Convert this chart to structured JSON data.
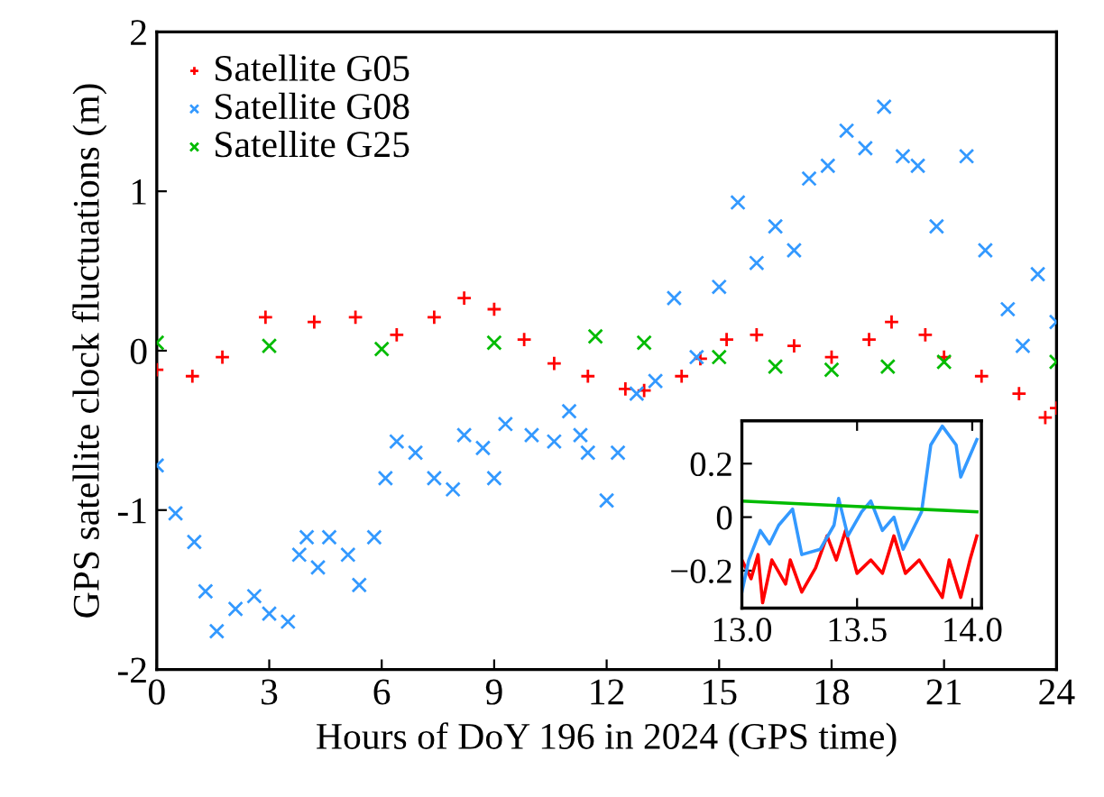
{
  "chart_data": [
    {
      "type": "scatter",
      "xlabel": "Hours of DoY 196 in 2024 (GPS time)",
      "ylabel": "GPS satellite clock fluctuations (m)",
      "xlim": [
        0,
        24
      ],
      "xticks": [
        0,
        3,
        6,
        9,
        12,
        15,
        18,
        21,
        24
      ],
      "ylim": [
        -2,
        2
      ],
      "yticks": [
        -2,
        -1,
        0,
        1,
        2
      ],
      "legend": "top left",
      "grid": false,
      "series": [
        {
          "name": "Satellite G05",
          "color": "#ff0000",
          "marker": "plus",
          "x": [
            0,
            0.95,
            1.75,
            2.9,
            4.2,
            5.3,
            6.4,
            7.4,
            8.2,
            9.0,
            9.8,
            10.6,
            11.5,
            12.5,
            13,
            14,
            14.5,
            15.2,
            16,
            17,
            18,
            19,
            19.6,
            20.5,
            21,
            22,
            23,
            23.7,
            24
          ],
          "values": [
            -0.12,
            -0.16,
            -0.04,
            0.21,
            0.18,
            0.21,
            0.1,
            0.21,
            0.33,
            0.26,
            0.07,
            -0.08,
            -0.16,
            -0.24,
            -0.25,
            -0.16,
            -0.05,
            0.07,
            0.1,
            0.03,
            -0.04,
            0.07,
            0.18,
            0.1,
            -0.04,
            -0.16,
            -0.27,
            -0.42,
            -0.36
          ]
        },
        {
          "name": "Satellite G08",
          "color": "#3399ff",
          "marker": "cross",
          "x": [
            0,
            0.5,
            1.0,
            1.3,
            1.6,
            2.1,
            2.6,
            3.0,
            3.5,
            3.8,
            4.0,
            4.3,
            4.6,
            5.1,
            5.4,
            5.8,
            6.1,
            6.4,
            6.9,
            7.4,
            7.9,
            8.2,
            8.7,
            9.0,
            9.3,
            10.0,
            10.6,
            11.0,
            11.3,
            11.5,
            12.0,
            12.3,
            12.8,
            13.3,
            13.8,
            14.4,
            15.0,
            15.5,
            16.0,
            16.5,
            17.0,
            17.4,
            17.9,
            18.4,
            18.9,
            19.4,
            19.9,
            20.3,
            20.8,
            21.6,
            22.1,
            22.7,
            23.1,
            23.5,
            24.0
          ],
          "values": [
            -0.72,
            -1.02,
            -1.2,
            -1.51,
            -1.76,
            -1.62,
            -1.54,
            -1.65,
            -1.7,
            -1.28,
            -1.17,
            -1.36,
            -1.17,
            -1.28,
            -1.47,
            -1.17,
            -0.8,
            -0.57,
            -0.64,
            -0.8,
            -0.87,
            -0.53,
            -0.61,
            -0.8,
            -0.46,
            -0.53,
            -0.57,
            -0.38,
            -0.53,
            -0.64,
            -0.94,
            -0.64,
            -0.27,
            -0.19,
            0.33,
            -0.04,
            0.4,
            0.93,
            0.55,
            0.78,
            0.63,
            1.08,
            1.16,
            1.38,
            1.27,
            1.53,
            1.22,
            1.16,
            0.78,
            1.22,
            0.63,
            0.26,
            0.03,
            0.48,
            0.18
          ]
        },
        {
          "name": "Satellite G25",
          "color": "#00bb00",
          "marker": "cross",
          "x": [
            0,
            3,
            6,
            9,
            11.7,
            13,
            15,
            16.5,
            18,
            19.5,
            21,
            24
          ],
          "values": [
            0.05,
            0.03,
            0.01,
            0.05,
            0.09,
            0.05,
            -0.04,
            -0.1,
            -0.12,
            -0.1,
            -0.07,
            -0.07
          ]
        }
      ]
    },
    {
      "type": "line",
      "xlim": [
        13.0,
        14.04
      ],
      "xticks": [
        {
          "value": 13,
          "label": "13.0"
        },
        {
          "value": 13.5,
          "label": "13.5"
        },
        {
          "value": 14,
          "label": "14.0"
        }
      ],
      "ylim": [
        -0.34,
        0.36
      ],
      "yticks": [
        {
          "value": -0.2,
          "label": "−0.2"
        },
        0,
        0.2
      ],
      "grid": false,
      "series": [
        {
          "color": "#ff0000",
          "x": [
            13.0,
            13.04,
            13.07,
            13.09,
            13.13,
            13.19,
            13.21,
            13.26,
            13.32,
            13.37,
            13.41,
            13.45,
            13.5,
            13.56,
            13.61,
            13.66,
            13.71,
            13.77,
            13.82,
            13.87,
            13.9,
            13.95,
            13.99,
            14.02
          ],
          "values": [
            -0.16,
            -0.23,
            -0.14,
            -0.32,
            -0.16,
            -0.25,
            -0.16,
            -0.28,
            -0.19,
            -0.07,
            -0.16,
            -0.05,
            -0.21,
            -0.16,
            -0.21,
            -0.07,
            -0.21,
            -0.16,
            -0.23,
            -0.3,
            -0.16,
            -0.3,
            -0.16,
            -0.07
          ]
        },
        {
          "color": "#3399ff",
          "x": [
            13.0,
            13.03,
            13.08,
            13.12,
            13.16,
            13.22,
            13.26,
            13.34,
            13.4,
            13.42,
            13.46,
            13.52,
            13.56,
            13.61,
            13.66,
            13.7,
            13.74,
            13.78,
            13.82,
            13.87,
            13.93,
            13.95,
            14.02
          ],
          "values": [
            -0.28,
            -0.16,
            -0.05,
            -0.1,
            -0.03,
            0.03,
            -0.14,
            -0.12,
            -0.03,
            0.07,
            -0.07,
            0.02,
            0.06,
            -0.05,
            0.0,
            -0.12,
            -0.05,
            0.02,
            0.27,
            0.34,
            0.27,
            0.15,
            0.29
          ]
        },
        {
          "color": "#00bb00",
          "x": [
            13.0,
            13.5,
            14.02
          ],
          "values": [
            0.06,
            0.04,
            0.02
          ]
        }
      ]
    }
  ]
}
